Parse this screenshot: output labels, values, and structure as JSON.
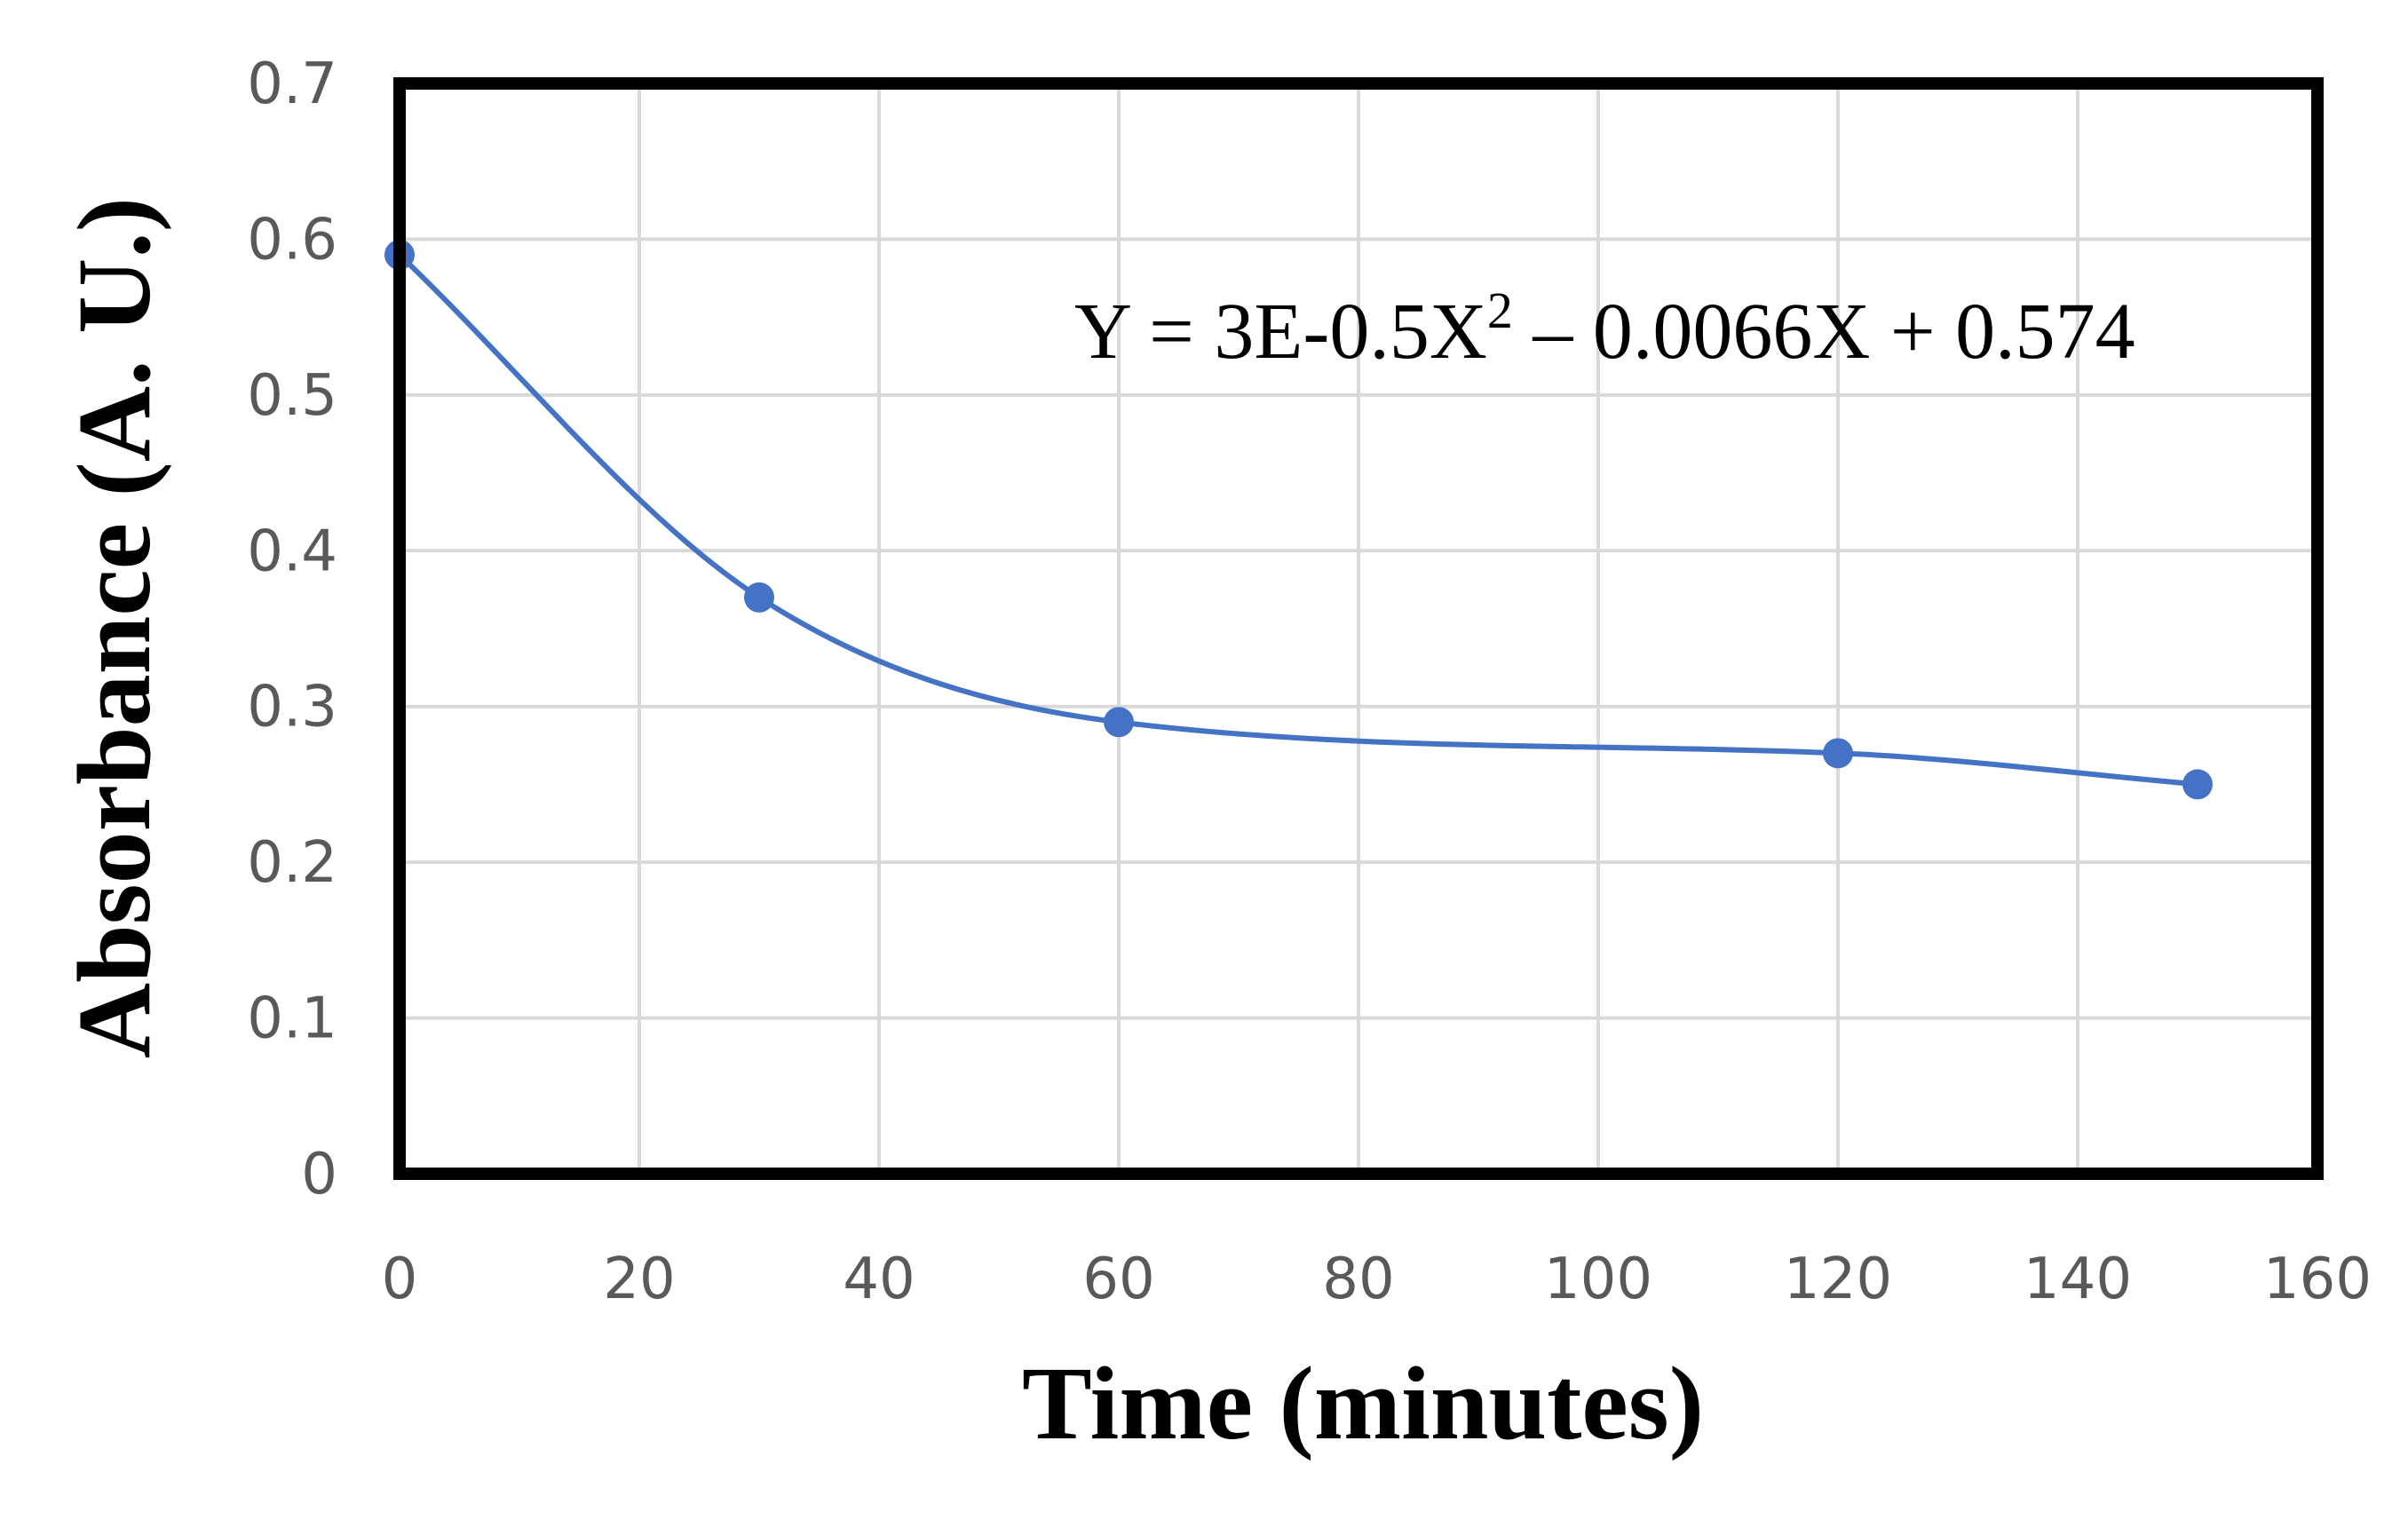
{
  "chart_data": {
    "type": "line",
    "xlabel": "Time (minutes)",
    "ylabel": "Absorbance (A. U.)",
    "xlim": [
      0,
      160
    ],
    "ylim": [
      0,
      0.7
    ],
    "x_ticks": [
      "0",
      "20",
      "40",
      "60",
      "80",
      "100",
      "120",
      "140",
      "160"
    ],
    "y_ticks": [
      "0",
      "0.1",
      "0.2",
      "0.3",
      "0.4",
      "0.5",
      "0.6",
      "0.7"
    ],
    "grid": true,
    "smoothed": true,
    "series": [
      {
        "x": [
          0,
          30,
          60,
          120,
          150
        ],
        "y": [
          0.59,
          0.37,
          0.29,
          0.27,
          0.25
        ],
        "color": "#4472c4"
      }
    ],
    "annotation": {
      "prefix": "Y = 3E-0.5X",
      "superscript": "2",
      "suffix": " – 0.0066X + 0.574"
    }
  }
}
